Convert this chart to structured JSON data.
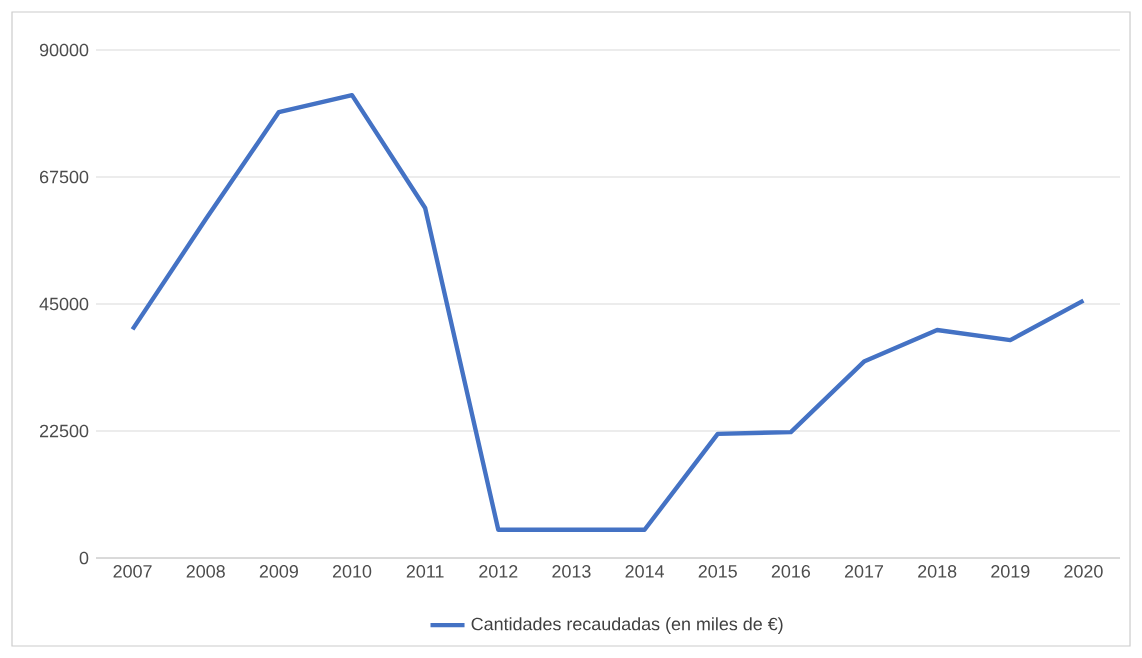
{
  "chart_data": {
    "type": "line",
    "categories": [
      "2007",
      "2008",
      "2009",
      "2010",
      "2011",
      "2012",
      "2013",
      "2014",
      "2015",
      "2016",
      "2017",
      "2018",
      "2019",
      "2020"
    ],
    "series": [
      {
        "name": "Cantidades recaudadas (en miles de €)",
        "color": "#4472c4",
        "values": [
          40500,
          60000,
          79000,
          82000,
          62000,
          5000,
          5000,
          5000,
          22000,
          22300,
          34800,
          40400,
          38600,
          45600
        ]
      }
    ],
    "ylim": [
      0,
      90000
    ],
    "yticks": [
      0,
      22500,
      45000,
      67500,
      90000
    ],
    "grid": "y",
    "legend": "bottom",
    "marker": "none",
    "line_style": "solid"
  }
}
